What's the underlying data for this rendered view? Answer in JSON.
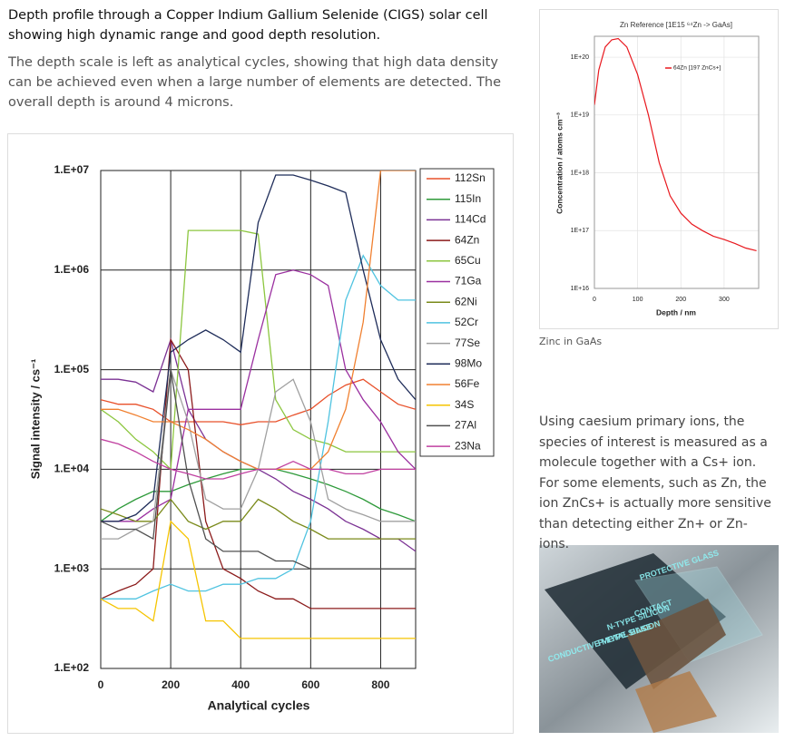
{
  "intro": {
    "heading": "Depth profile through a Copper Indium Gallium Selenide (CIGS) solar cell showing high dynamic range and good depth resolution.",
    "paragraph": "The depth scale is left as analytical cycles, showing that high data density can be achieved even when a large number of elements are detected. The overall depth is around 4 microns."
  },
  "chart_data": [
    {
      "type": "line",
      "xlabel": "Analytical cycles",
      "ylabel": "Signal intensity / cs⁻¹",
      "log_y": true,
      "grid": true,
      "legend": "top-right",
      "xlim": [
        0,
        900
      ],
      "xticks": [
        0,
        200,
        400,
        600,
        800
      ],
      "ylim": [
        100,
        10000000
      ],
      "yticks": [
        {
          "value": 100,
          "label": "1.E+02"
        },
        {
          "value": 1000,
          "label": "1.E+03"
        },
        {
          "value": 10000,
          "label": "1.E+04"
        },
        {
          "value": 100000,
          "label": "1.E+05"
        },
        {
          "value": 1000000,
          "label": "1.E+06"
        },
        {
          "value": 10000000,
          "label": "1.E+07"
        }
      ],
      "x": [
        0,
        50,
        100,
        150,
        200,
        250,
        300,
        350,
        400,
        450,
        500,
        550,
        600,
        650,
        700,
        750,
        800,
        850,
        900
      ],
      "series": [
        {
          "name": "112Sn",
          "color": "#e8502a",
          "values": [
            50000,
            45000,
            45000,
            40000,
            30000,
            30000,
            30000,
            30000,
            28000,
            30000,
            30000,
            35000,
            40000,
            55000,
            70000,
            80000,
            60000,
            45000,
            40000
          ]
        },
        {
          "name": "115In",
          "color": "#2e9a3a",
          "values": [
            3000,
            4000,
            5000,
            6000,
            6000,
            7000,
            8000,
            9000,
            10000,
            10000,
            10000,
            9000,
            8000,
            7000,
            6000,
            5000,
            4000,
            3500,
            3000
          ]
        },
        {
          "name": "114Cd",
          "color": "#7b3294",
          "values": [
            80000,
            80000,
            75000,
            60000,
            200000,
            40000,
            20000,
            15000,
            12000,
            10000,
            8000,
            6000,
            5000,
            4000,
            3000,
            2500,
            2000,
            2000,
            1500
          ]
        },
        {
          "name": "64Zn",
          "color": "#8b1a1a",
          "values": [
            500,
            600,
            700,
            1000,
            200000,
            100000,
            3000,
            1000,
            800,
            600,
            500,
            500,
            400,
            400,
            400,
            400,
            400,
            400,
            400
          ]
        },
        {
          "name": "65Cu",
          "color": "#8cc63f",
          "values": [
            40000,
            30000,
            20000,
            15000,
            10000,
            2500000,
            2500000,
            2500000,
            2500000,
            2300000,
            50000,
            25000,
            20000,
            18000,
            15000,
            15000,
            15000,
            15000,
            15000
          ]
        },
        {
          "name": "71Ga",
          "color": "#9b30a0",
          "values": [
            3000,
            3000,
            3000,
            4000,
            5000,
            40000,
            40000,
            40000,
            40000,
            200000,
            900000,
            1000000,
            900000,
            700000,
            100000,
            50000,
            30000,
            15000,
            10000
          ]
        },
        {
          "name": "62Ni",
          "color": "#7a8a1a",
          "values": [
            4000,
            3500,
            3000,
            3000,
            5000,
            3000,
            2500,
            3000,
            3000,
            5000,
            4000,
            3000,
            2500,
            2000,
            2000,
            2000,
            2000,
            2000,
            2000
          ]
        },
        {
          "name": "52Cr",
          "color": "#4fc3e0",
          "values": [
            500,
            500,
            500,
            600,
            700,
            600,
            600,
            700,
            700,
            800,
            800,
            1000,
            3000,
            30000,
            500000,
            1400000,
            700000,
            500000,
            500000
          ]
        },
        {
          "name": "77Se",
          "color": "#a0a0a0",
          "values": [
            2000,
            2000,
            2500,
            3000,
            100000,
            30000,
            5000,
            4000,
            4000,
            10000,
            60000,
            80000,
            30000,
            5000,
            4000,
            3500,
            3000,
            3000,
            3000
          ]
        },
        {
          "name": "98Mo",
          "color": "#1f2d5a",
          "values": [
            3000,
            3000,
            3500,
            5000,
            150000,
            200000,
            250000,
            200000,
            150000,
            3000000,
            9000000,
            9000000,
            8000000,
            7000000,
            6000000,
            1000000,
            200000,
            80000,
            50000
          ]
        },
        {
          "name": "56Fe",
          "color": "#f08030",
          "values": [
            40000,
            40000,
            35000,
            30000,
            30000,
            25000,
            20000,
            15000,
            12000,
            10000,
            10000,
            10000,
            10000,
            15000,
            40000,
            300000,
            10000000,
            10000000,
            10000000
          ]
        },
        {
          "name": "34S",
          "color": "#f5c400",
          "values": [
            500,
            400,
            400,
            300,
            3000,
            2000,
            300,
            300,
            200,
            200,
            200,
            200,
            200,
            200,
            200,
            200,
            200,
            200,
            200
          ]
        },
        {
          "name": "27Al",
          "color": "#505050",
          "values": [
            3000,
            2500,
            2500,
            2000,
            100000,
            8000,
            2000,
            1500,
            1500,
            1500,
            1200,
            1200,
            1000,
            1000,
            1000,
            1000,
            1000,
            1000,
            1000
          ]
        },
        {
          "name": "23Na",
          "color": "#c040a0",
          "values": [
            20000,
            18000,
            15000,
            12000,
            10000,
            9000,
            8000,
            8000,
            9000,
            10000,
            10000,
            12000,
            10000,
            10000,
            9000,
            9000,
            10000,
            10000,
            10000
          ]
        }
      ]
    },
    {
      "type": "line",
      "title": "Zn Reference [1E15 ⁶⁴Zn -> GaAs]",
      "xlabel": "Depth / nm",
      "ylabel": "Concentration / atoms cm⁻³",
      "log_y": true,
      "grid": true,
      "legend": "top-right",
      "xlim": [
        0,
        380
      ],
      "xticks": [
        0,
        100,
        200,
        300
      ],
      "ylim": [
        10000000000000000,
        230000000000000000000
      ],
      "yticks": [
        {
          "value": 10000000000000000,
          "label": "1E+16"
        },
        {
          "value": 100000000000000000,
          "label": "1E+17"
        },
        {
          "value": 1000000000000000000,
          "label": "1E+18"
        },
        {
          "value": 10000000000000000000,
          "label": "1E+19"
        },
        {
          "value": 100000000000000000000,
          "label": "1E+20"
        }
      ],
      "x": [
        0,
        10,
        25,
        40,
        55,
        75,
        100,
        125,
        150,
        175,
        200,
        225,
        250,
        275,
        300,
        325,
        350,
        375
      ],
      "series": [
        {
          "name": "64Zn [197 ZnCs+]",
          "color": "#e8181e",
          "values": [
            15000000000000000000,
            60000000000000000000,
            150000000000000000000,
            200000000000000000000,
            210000000000000000000,
            150000000000000000000,
            50000000000000000000,
            10000000000000000000,
            1500000000000000000,
            400000000000000000,
            200000000000000000,
            130000000000000000,
            100000000000000000,
            80000000000000000,
            70000000000000000,
            60000000000000000,
            50000000000000000,
            45000000000000000
          ]
        }
      ]
    }
  ],
  "caption": "Zinc in GaAs",
  "side_text": [
    "Using caesium primary ions, the species of interest is measured as a molecule together with a Cs+ ion.",
    "For some elements, such as Zn, the ion ZnCs+ is actually more sensitive than detecting either Zn+ or Zn- ions."
  ],
  "illustration": {
    "labels": [
      "PROTECTIVE GLASS",
      "CONTACT",
      "N-TYPE SILICON",
      "P-TYPE SILICON",
      "CONDUCTIVE METAL BASE"
    ]
  }
}
